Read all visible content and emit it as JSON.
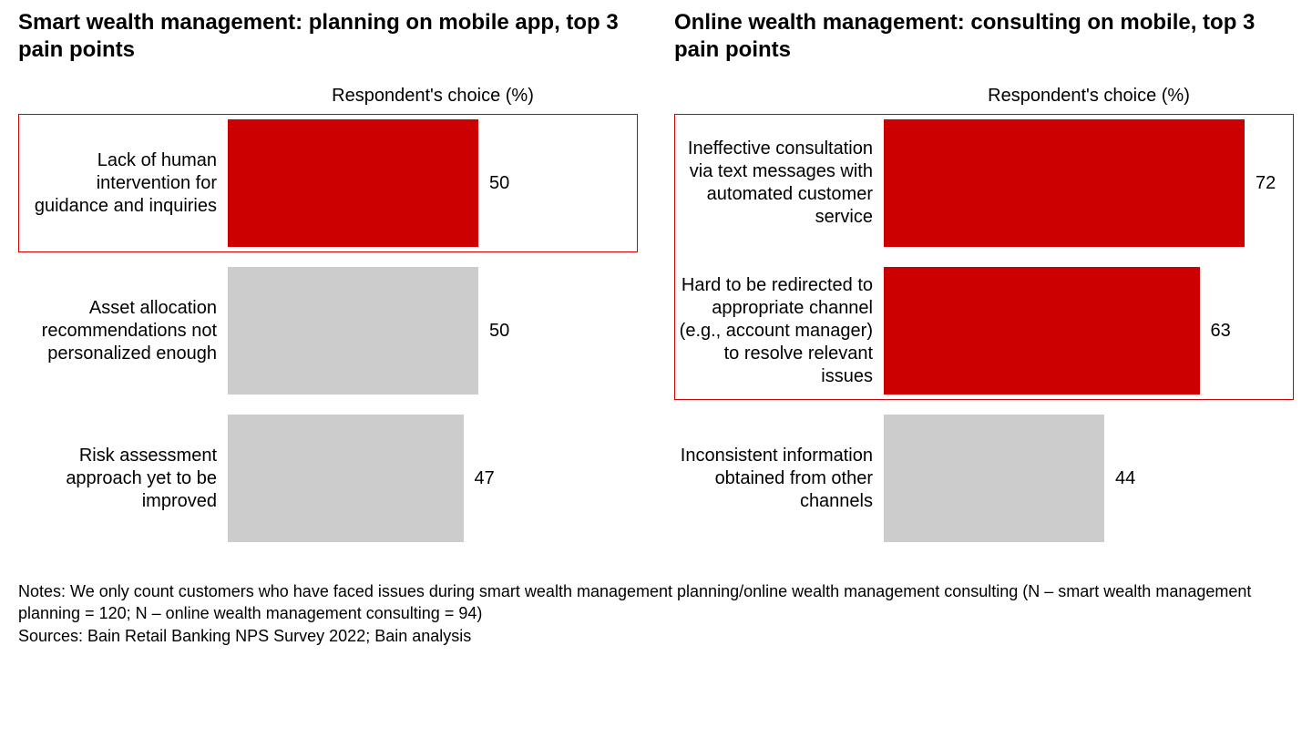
{
  "colors": {
    "highlight_bar": "#cc0000",
    "normal_bar": "#cccccc",
    "highlight_border": "#cc0000",
    "text": "#000000",
    "background": "#ffffff"
  },
  "chart": {
    "max_value": 72,
    "bar_scale_pct_per_unit": 1.25,
    "title_fontsize": 24,
    "label_fontsize": 20,
    "value_fontsize": 20
  },
  "left": {
    "title": "Smart wealth management: planning on mobile app, top 3 pain points",
    "axis_label": "Respondent's choice (%)",
    "highlight_rows": [
      0
    ],
    "bars": [
      {
        "label": "Lack of human intervention for guidance and inquiries",
        "value": 50,
        "color": "#cc0000"
      },
      {
        "label": "Asset allocation recommendations not personalized enough",
        "value": 50,
        "color": "#cccccc"
      },
      {
        "label": "Risk assessment approach yet to be improved",
        "value": 47,
        "color": "#cccccc"
      }
    ]
  },
  "right": {
    "title": "Online wealth management: consulting on mobile, top 3 pain points",
    "axis_label": "Respondent's choice (%)",
    "highlight_rows": [
      0,
      1
    ],
    "bars": [
      {
        "label": "Ineffective consultation via text messages with automated customer service",
        "value": 72,
        "color": "#cc0000"
      },
      {
        "label": "Hard to be redirected to appropriate channel (e.g., account manager) to resolve relevant issues",
        "value": 63,
        "color": "#cc0000"
      },
      {
        "label": "Inconsistent information obtained from other channels",
        "value": 44,
        "color": "#cccccc"
      }
    ]
  },
  "footer": {
    "notes": "Notes: We only count customers who have faced issues during smart wealth management planning/online wealth management consulting (N – smart wealth management planning = 120; N – online wealth management consulting = 94)",
    "sources": "Sources: Bain Retail Banking NPS Survey 2022; Bain analysis"
  }
}
